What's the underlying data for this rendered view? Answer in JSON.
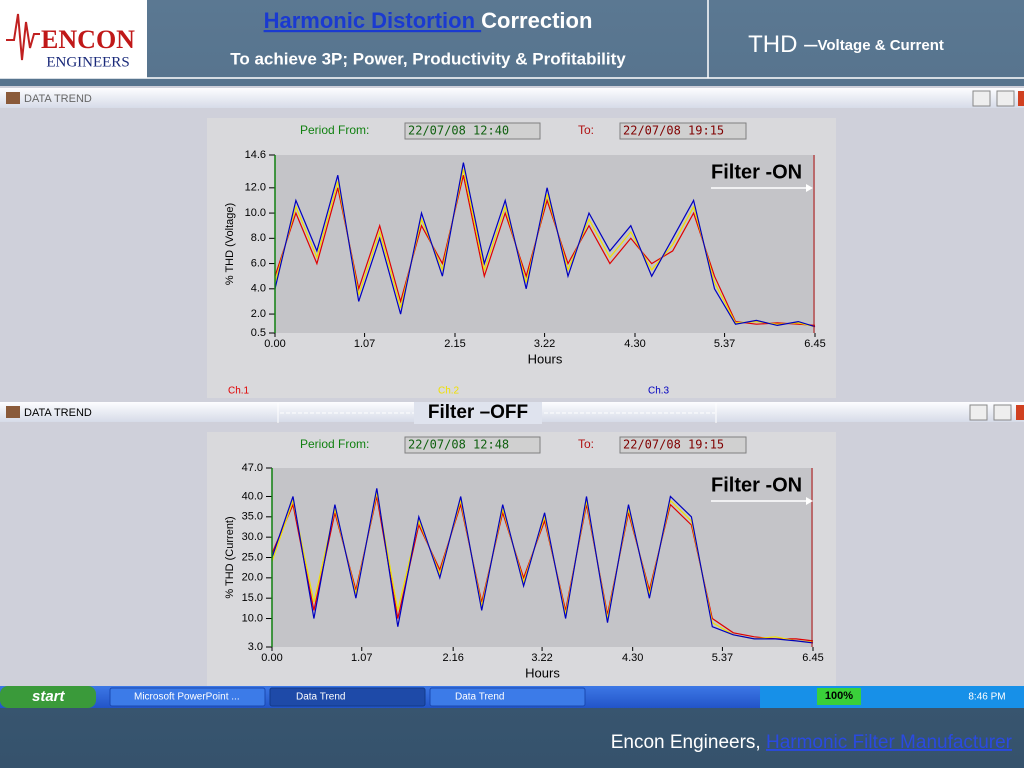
{
  "header": {
    "logo_top": "ENCON",
    "logo_bottom": "ENGINEERS",
    "title_link": "Harmonic Distortion ",
    "title_rest": "Correction",
    "subtitle": "To achieve 3P; Power, Productivity & Profitability",
    "right_title": "THD –",
    "right_subtitle": "Voltage & Current"
  },
  "windows": [
    {
      "title": "DATA TREND"
    },
    {
      "title": "DATA TREND"
    }
  ],
  "separator_label": "Filter –OFF",
  "chart_data": [
    {
      "type": "line",
      "period_label": "Period From:",
      "period_from": "22/07/08 12:40",
      "to_label": "To:",
      "period_to": "22/07/08 19:15",
      "y_label": "% THD (Voltage)",
      "x_label": "Hours",
      "annotation": "Filter -ON",
      "x": [
        0,
        0.25,
        0.5,
        0.75,
        1,
        1.25,
        1.5,
        1.75,
        2,
        2.25,
        2.5,
        2.75,
        3,
        3.25,
        3.5,
        3.75,
        4,
        4.25,
        4.5,
        4.75,
        5,
        5.25,
        5.5,
        5.75,
        6,
        6.25,
        6.45
      ],
      "series": [
        {
          "name": "Ch.1",
          "color": "#e00000",
          "values": [
            5,
            10,
            6,
            12,
            4,
            9,
            3,
            9,
            6,
            13,
            5,
            10,
            5,
            11,
            6,
            9,
            6,
            8,
            6,
            7,
            10,
            5,
            1.4,
            1.2,
            1.3,
            1.2,
            1.1
          ]
        },
        {
          "name": "Ch.2",
          "color": "#f0e000",
          "values": [
            4.5,
            10.5,
            6.5,
            12.5,
            3.5,
            8.5,
            2.5,
            9.5,
            5.5,
            13.5,
            5.5,
            10.5,
            4.5,
            11.5,
            5.5,
            9.5,
            6.5,
            8.5,
            5.5,
            7.5,
            10.5,
            4.5,
            1.3,
            1.4,
            1.2,
            1.3,
            1.0
          ]
        },
        {
          "name": "Ch.3",
          "color": "#0000c0",
          "values": [
            4,
            11,
            7,
            13,
            3,
            8,
            2,
            10,
            5,
            14,
            6,
            11,
            4,
            12,
            5,
            10,
            7,
            9,
            5,
            8,
            11,
            4,
            1.2,
            1.5,
            1.1,
            1.4,
            1.0
          ]
        }
      ],
      "xlim": [
        0,
        6.45
      ],
      "xticks": [
        {
          "value": 0,
          "label": "0.00"
        },
        1.07,
        2.15,
        3.22,
        {
          "value": 4.3,
          "label": "4.30"
        },
        5.37,
        6.45
      ],
      "ylim": [
        0.5,
        14.6
      ],
      "yticks": [
        {
          "value": 0.5,
          "label": "0.5"
        },
        {
          "value": 2,
          "label": "2.0"
        },
        {
          "value": 4,
          "label": "4.0"
        },
        {
          "value": 6,
          "label": "6.0"
        },
        {
          "value": 8,
          "label": "8.0"
        },
        {
          "value": 10,
          "label": "10.0"
        },
        {
          "value": 12,
          "label": "12.0"
        },
        14.6
      ],
      "grid": false,
      "legend": "bottom"
    },
    {
      "type": "line",
      "period_label": "Period From:",
      "period_from": "22/07/08 12:48",
      "to_label": "To:",
      "period_to": "22/07/08 19:15",
      "y_label": "% THD (Current)",
      "x_label": "Hours",
      "annotation": "Filter -ON",
      "x": [
        0,
        0.25,
        0.5,
        0.75,
        1,
        1.25,
        1.5,
        1.75,
        2,
        2.25,
        2.5,
        2.75,
        3,
        3.25,
        3.5,
        3.75,
        4,
        4.25,
        4.5,
        4.75,
        5,
        5.25,
        5.5,
        5.75,
        6,
        6.25,
        6.45
      ],
      "series": [
        {
          "color": "#e00000",
          "values": [
            26,
            38,
            12,
            36,
            17,
            40,
            10,
            33,
            22,
            38,
            14,
            36,
            20,
            34,
            12,
            38,
            11,
            36,
            17,
            38,
            33,
            10,
            6.5,
            5.5,
            5,
            5,
            4.5
          ]
        },
        {
          "color": "#f0e000",
          "values": [
            24,
            39,
            14,
            37,
            16,
            41,
            12,
            34,
            21,
            39,
            13,
            37,
            19,
            35,
            11,
            39,
            10,
            37,
            16,
            39,
            34,
            9,
            6,
            5,
            5.5,
            4.5,
            4.2
          ]
        },
        {
          "color": "#0000c0",
          "values": [
            25,
            40,
            10,
            38,
            15,
            42,
            8,
            35,
            20,
            40,
            12,
            38,
            18,
            36,
            10,
            40,
            9,
            38,
            15,
            40,
            35,
            8,
            6,
            5,
            5,
            4.5,
            4
          ]
        }
      ],
      "xlim": [
        0,
        6.45
      ],
      "xticks": [
        {
          "value": 0,
          "label": "0.00"
        },
        1.07,
        2.16,
        3.22,
        {
          "value": 4.3,
          "label": "4.30"
        },
        5.37,
        6.45
      ],
      "ylim": [
        3,
        47
      ],
      "yticks": [
        {
          "value": 3,
          "label": "3.0"
        },
        {
          "value": 10,
          "label": "10.0"
        },
        {
          "value": 15,
          "label": "15.0"
        },
        {
          "value": 20,
          "label": "20.0"
        },
        {
          "value": 25,
          "label": "25.0"
        },
        {
          "value": 30,
          "label": "30.0"
        },
        {
          "value": 35,
          "label": "35.0"
        },
        {
          "value": 40,
          "label": "40.0"
        },
        {
          "value": 47,
          "label": "47.0"
        }
      ],
      "grid": false
    }
  ],
  "taskbar": {
    "start": "start",
    "tasks": [
      "Microsoft PowerPoint ...",
      "Data Trend",
      "Data Trend"
    ],
    "zoom": "100%",
    "clock": "8:46 PM"
  },
  "footer": {
    "text": "Encon Engineers, ",
    "link": "Harmonic Filter Manufacturer"
  }
}
